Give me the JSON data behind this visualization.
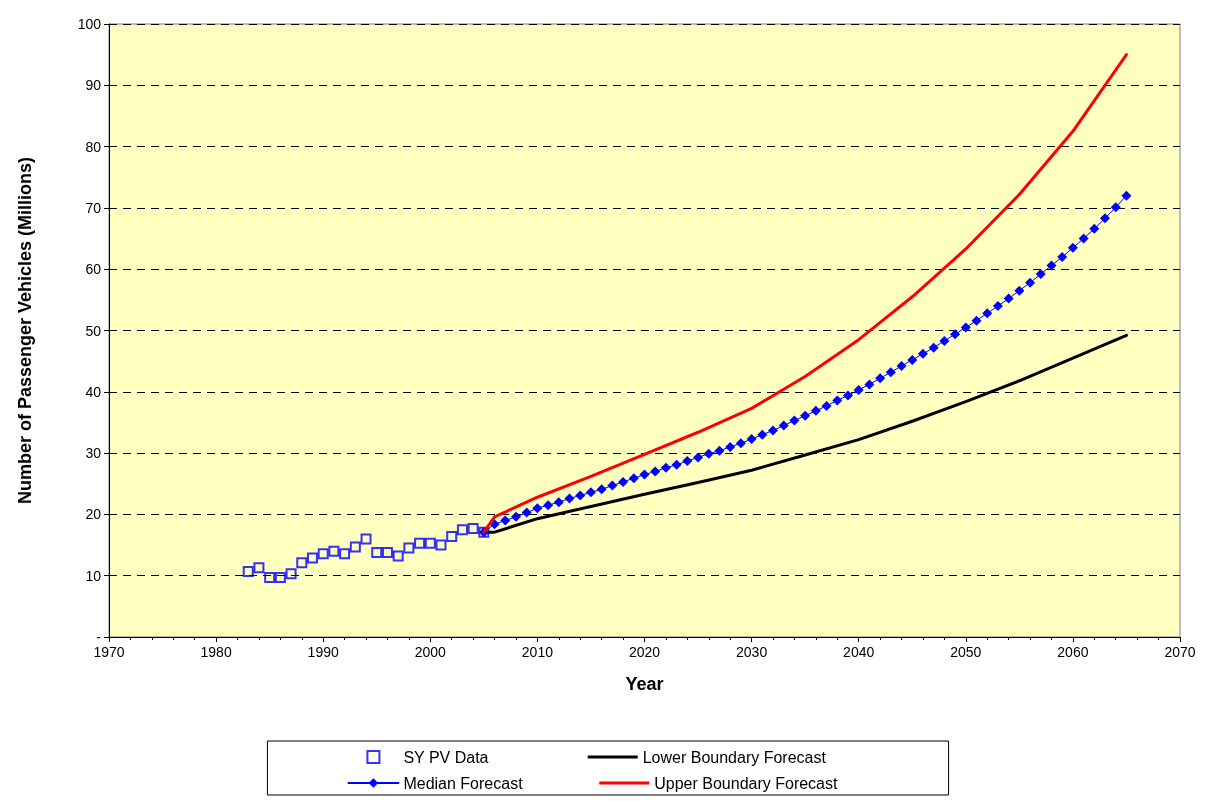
{
  "chart_data": {
    "type": "line",
    "xlabel": "Year",
    "ylabel": "Number of Passenger Vehicles (Millions)",
    "xlim": [
      1970,
      2070
    ],
    "xticks": [
      1970,
      1980,
      1990,
      2000,
      2010,
      2020,
      2030,
      2040,
      2050,
      2060,
      2070
    ],
    "ylim": [
      0,
      100
    ],
    "yticks": [
      {
        "value": 0,
        "label": "-"
      },
      10,
      20,
      30,
      40,
      50,
      60,
      70,
      80,
      90,
      100
    ],
    "grid": "y",
    "legend": "bottom",
    "series": [
      {
        "name": "SY PV Data",
        "type": "scatter",
        "marker": "square",
        "color": "#0000ff",
        "x": [
          1983,
          1984,
          1985,
          1986,
          1987,
          1988,
          1989,
          1990,
          1991,
          1992,
          1993,
          1994,
          1995,
          1996,
          1997,
          1998,
          1999,
          2000,
          2001,
          2002,
          2003,
          2004,
          2005
        ],
        "values": [
          10.7,
          11.3,
          9.7,
          9.7,
          10.3,
          12.1,
          12.9,
          13.6,
          14.0,
          13.6,
          14.7,
          16.0,
          13.8,
          13.8,
          13.2,
          14.5,
          15.3,
          15.3,
          15.0,
          16.4,
          17.5,
          17.7,
          17.1
        ]
      },
      {
        "name": "Lower Boundary Forecast",
        "type": "line",
        "marker": "none",
        "color": "#000000",
        "x": [
          2005,
          2006,
          2010,
          2015,
          2020,
          2025,
          2030,
          2035,
          2040,
          2045,
          2050,
          2055,
          2060,
          2065
        ],
        "values": [
          17.1,
          17.1,
          19.3,
          21.3,
          23.3,
          25.2,
          27.2,
          29.7,
          32.2,
          35.2,
          38.4,
          41.8,
          45.5,
          49.2
        ]
      },
      {
        "name": "Median Forecast",
        "type": "line",
        "marker": "diamond",
        "color": "#0000ff",
        "x": [
          2005,
          2006,
          2007,
          2008,
          2009,
          2010,
          2011,
          2012,
          2013,
          2014,
          2015,
          2016,
          2017,
          2018,
          2019,
          2020,
          2021,
          2022,
          2023,
          2024,
          2025,
          2026,
          2027,
          2028,
          2029,
          2030,
          2031,
          2032,
          2033,
          2034,
          2035,
          2036,
          2037,
          2038,
          2039,
          2040,
          2041,
          2042,
          2043,
          2044,
          2045,
          2046,
          2047,
          2048,
          2049,
          2050,
          2051,
          2052,
          2053,
          2054,
          2055,
          2056,
          2057,
          2058,
          2059,
          2060,
          2061,
          2062,
          2063,
          2064,
          2065
        ],
        "values": [
          17.1,
          18.4,
          19.0,
          19.6,
          20.3,
          21.0,
          21.5,
          22.0,
          22.6,
          23.1,
          23.6,
          24.1,
          24.7,
          25.3,
          25.9,
          26.5,
          27.0,
          27.6,
          28.1,
          28.7,
          29.3,
          29.9,
          30.4,
          31.0,
          31.6,
          32.3,
          33.0,
          33.7,
          34.5,
          35.3,
          36.1,
          36.9,
          37.7,
          38.6,
          39.4,
          40.3,
          41.2,
          42.2,
          43.2,
          44.2,
          45.2,
          46.2,
          47.2,
          48.3,
          49.4,
          50.5,
          51.6,
          52.8,
          54.0,
          55.2,
          56.5,
          57.8,
          59.2,
          60.6,
          62.0,
          63.5,
          65.0,
          66.6,
          68.3,
          70.1,
          72.0
        ]
      },
      {
        "name": "Upper Boundary Forecast",
        "type": "line",
        "marker": "none",
        "color": "#ff0000",
        "x": [
          2005,
          2006,
          2010,
          2015,
          2020,
          2025,
          2030,
          2035,
          2040,
          2045,
          2050,
          2055,
          2060,
          2065
        ],
        "values": [
          17.1,
          19.6,
          22.8,
          26.2,
          29.8,
          33.4,
          37.3,
          42.5,
          48.5,
          55.5,
          63.3,
          72.2,
          82.5,
          95.0
        ]
      }
    ]
  }
}
